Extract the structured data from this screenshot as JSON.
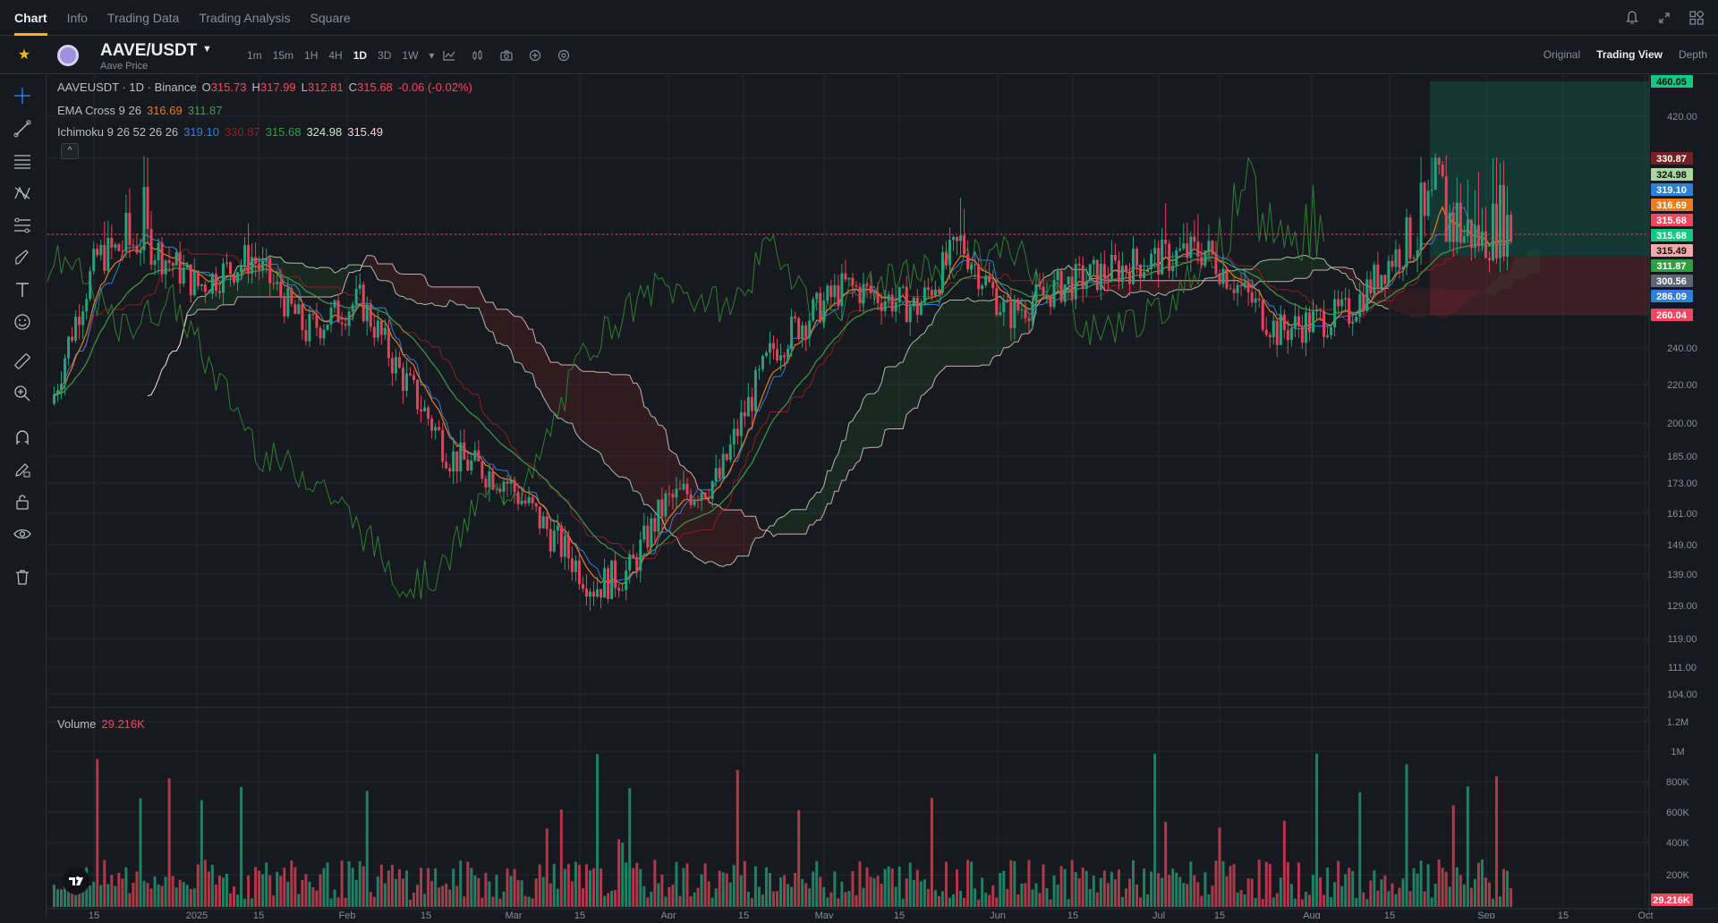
{
  "nav": {
    "tabs": [
      "Chart",
      "Info",
      "Trading Data",
      "Trading Analysis",
      "Square"
    ],
    "active_tab": "Chart",
    "icons": [
      "bell-icon",
      "expand-icon",
      "layout-icon"
    ]
  },
  "header": {
    "pair": "AAVE/USDT",
    "subtitle": "Aave Price",
    "intervals": [
      "1m",
      "15m",
      "1H",
      "4H",
      "1D",
      "3D",
      "1W"
    ],
    "active_interval": "1D",
    "views": [
      "Original",
      "Trading View",
      "Depth"
    ],
    "active_view": "Trading View"
  },
  "legend": {
    "main_title": "AAVEUSDT · 1D · Binance",
    "o_label": "O",
    "o_value": "315.73",
    "h_label": "H",
    "h_value": "317.99",
    "l_label": "L",
    "l_value": "312.81",
    "c_label": "C",
    "c_value": "315.68",
    "change": "-0.06 (-0.02%)",
    "ema_title": "EMA Cross 9 26",
    "ema_fast": "316.69",
    "ema_slow": "311.87",
    "ichimoku_title": "Ichimoku 9 26 52 26 26",
    "ich_conversion": "319.10",
    "ich_base": "330.87",
    "ich_lagging": "315.68",
    "ich_span_a": "324.98",
    "ich_span_b": "315.49",
    "volume_title": "Volume",
    "volume_value": "29.216K"
  },
  "price_axis": {
    "labels": [
      "420.00",
      "240.00",
      "220.00",
      "200.00",
      "185.00",
      "173.00",
      "161.00",
      "149.00",
      "139.00",
      "129.00",
      "119.00",
      "111.00",
      "104.00"
    ],
    "top_badge": "460.05",
    "bottom_badge": "260.04",
    "badges": [
      {
        "value": "330.87",
        "color": "#7a1e24"
      },
      {
        "value": "324.98",
        "color": "#a8d8a0"
      },
      {
        "value": "319.10",
        "color": "#2f7fd8"
      },
      {
        "value": "316.69",
        "color": "#f07a18"
      },
      {
        "value": "315.68",
        "color": "#f6465d"
      },
      {
        "value": "315.68",
        "color": "#0ecb81"
      },
      {
        "value": "315.49",
        "color": "#f5a9a9"
      },
      {
        "value": "311.87",
        "color": "#2ea043"
      },
      {
        "value": "300.56",
        "color": "#5e6673"
      },
      {
        "value": "286.09",
        "color": "#2f7fd8"
      }
    ]
  },
  "volume_axis": {
    "labels": [
      "1.2M",
      "1M",
      "800K",
      "600K",
      "400K",
      "200K"
    ],
    "badge": "29.216K"
  },
  "time_axis": {
    "labels": [
      "15",
      "2025",
      "15",
      "Feb",
      "15",
      "Mar",
      "15",
      "Apr",
      "15",
      "May",
      "15",
      "Jun",
      "15",
      "Jul",
      "15",
      "Aug",
      "15",
      "Sep",
      "15",
      "Oct"
    ]
  },
  "colors": {
    "up": "#26a17b",
    "down": "#e0445a",
    "ema_fast": "#f07a18",
    "ema_slow": "#3f9a4a",
    "conversion": "#2f7fd8",
    "base": "#8c1d27",
    "lagging": "#2e7d32",
    "span_a": "#c8e6c9",
    "span_b": "#ffcdd2"
  },
  "left_tools": [
    "crosshair-icon",
    "trendline-icon",
    "horizontal-lines-icon",
    "pattern-icon",
    "fib-icon",
    "brush-icon",
    "text-icon",
    "emoji-icon",
    "ruler-icon",
    "zoom-icon",
    "magnet-icon",
    "lock-pen-icon",
    "lock-icon",
    "eye-icon",
    "trash-icon"
  ]
}
